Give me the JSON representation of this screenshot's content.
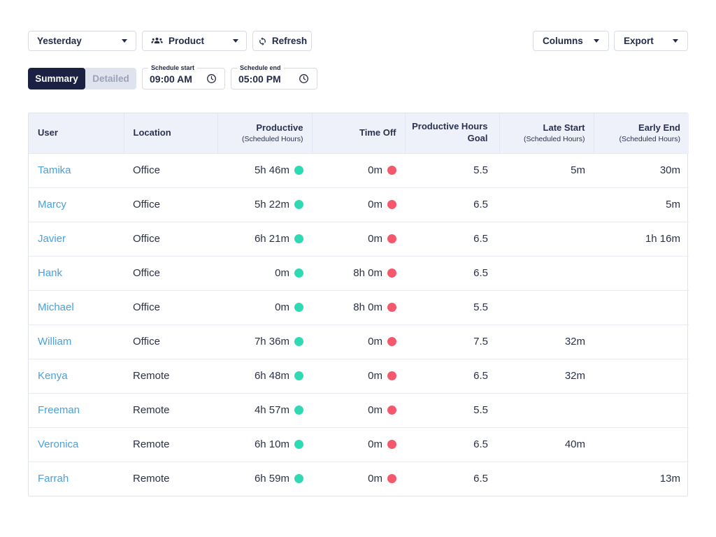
{
  "toolbar": {
    "date_range_value": "Yesterday",
    "team_value": "Product",
    "team_icon": "people-icon",
    "refresh_label": "Refresh",
    "refresh_icon": "sync-icon",
    "columns_label": "Columns",
    "export_label": "Export",
    "dropdown_icon": "caret-down-icon"
  },
  "view_tabs": {
    "summary_label": "Summary",
    "detailed_label": "Detailed",
    "active": "Summary"
  },
  "schedule": {
    "start_label": "Schedule start",
    "start_value": "09:00 AM",
    "end_label": "Schedule end",
    "end_value": "05:00 PM",
    "field_icon": "clock-icon"
  },
  "table": {
    "columns": [
      {
        "label": "User",
        "sublabel": ""
      },
      {
        "label": "Location",
        "sublabel": ""
      },
      {
        "label": "Productive",
        "sublabel": "(Scheduled Hours)"
      },
      {
        "label": "Time Off",
        "sublabel": ""
      },
      {
        "label": "Productive Hours Goal",
        "sublabel": ""
      },
      {
        "label": "Late Start",
        "sublabel": "(Scheduled Hours)"
      },
      {
        "label": "Early End",
        "sublabel": "(Scheduled Hours)"
      }
    ],
    "rows": [
      {
        "user": "Tamika",
        "location": "Office",
        "productive": "5h 46m",
        "time_off": "0m",
        "goal": "5.5",
        "late_start": "5m",
        "early_end": "30m"
      },
      {
        "user": "Marcy",
        "location": "Office",
        "productive": "5h 22m",
        "time_off": "0m",
        "goal": "6.5",
        "late_start": "",
        "early_end": "5m"
      },
      {
        "user": "Javier",
        "location": "Office",
        "productive": "6h 21m",
        "time_off": "0m",
        "goal": "6.5",
        "late_start": "",
        "early_end": "1h 16m"
      },
      {
        "user": "Hank",
        "location": "Office",
        "productive": "0m",
        "time_off": "8h 0m",
        "goal": "6.5",
        "late_start": "",
        "early_end": ""
      },
      {
        "user": "Michael",
        "location": "Office",
        "productive": "0m",
        "time_off": "8h 0m",
        "goal": "5.5",
        "late_start": "",
        "early_end": ""
      },
      {
        "user": "William",
        "location": "Office",
        "productive": "7h 36m",
        "time_off": "0m",
        "goal": "7.5",
        "late_start": "32m",
        "early_end": ""
      },
      {
        "user": "Kenya",
        "location": "Remote",
        "productive": "6h 48m",
        "time_off": "0m",
        "goal": "6.5",
        "late_start": "32m",
        "early_end": ""
      },
      {
        "user": "Freeman",
        "location": "Remote",
        "productive": "4h 57m",
        "time_off": "0m",
        "goal": "5.5",
        "late_start": "",
        "early_end": ""
      },
      {
        "user": "Veronica",
        "location": "Remote",
        "productive": "6h 10m",
        "time_off": "0m",
        "goal": "6.5",
        "late_start": "40m",
        "early_end": ""
      },
      {
        "user": "Farrah",
        "location": "Remote",
        "productive": "6h 59m",
        "time_off": "0m",
        "goal": "6.5",
        "late_start": "",
        "early_end": "13m"
      }
    ]
  },
  "colors": {
    "productive_dot": "#2ed9b4",
    "time_off_dot": "#f4586c",
    "user_link": "#4aa0de",
    "primary_dark": "#1b2142",
    "header_bg": "#eef1f9"
  }
}
